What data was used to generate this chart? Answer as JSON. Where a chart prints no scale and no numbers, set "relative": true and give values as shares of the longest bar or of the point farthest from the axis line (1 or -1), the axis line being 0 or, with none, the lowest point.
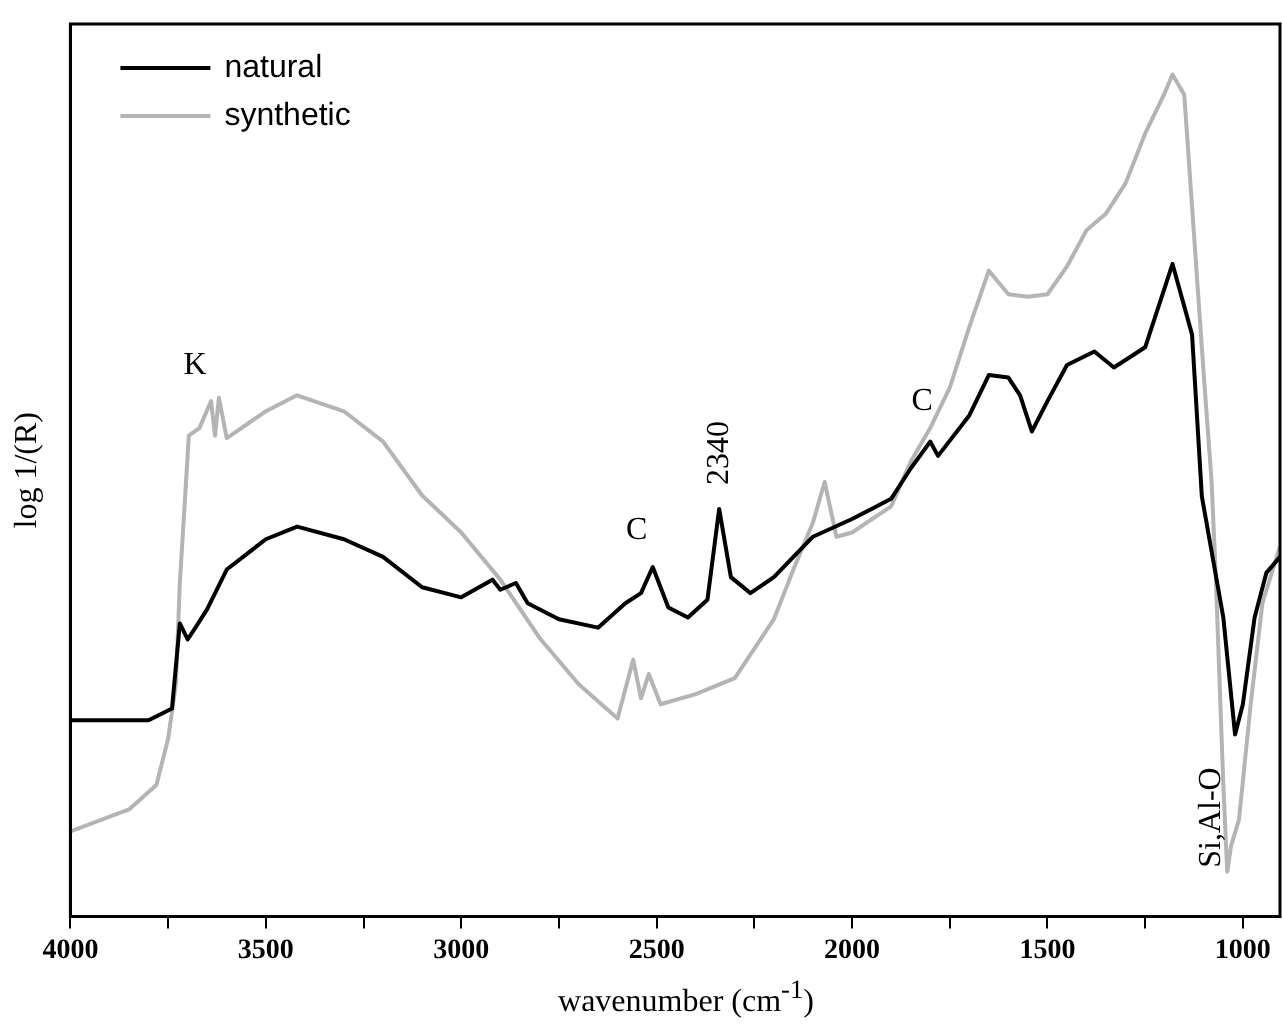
{
  "chart_data": {
    "type": "line",
    "xlabel": "wavenumber (cm$^{-1}$)",
    "ylabel": "log 1/(R)",
    "relative": true,
    "legend": "top left",
    "grid": false,
    "marker": "none",
    "line_style": "solid",
    "xlim": [
      4000,
      905
    ],
    "xticks": [
      4000,
      {
        "value": 3750,
        "label": null
      },
      3500,
      {
        "value": 3250,
        "label": null
      },
      3000,
      {
        "value": 2750,
        "label": null
      },
      2500,
      {
        "value": 2250,
        "label": null
      },
      2000,
      {
        "value": 1750,
        "label": null
      },
      1500,
      {
        "value": 1250,
        "label": null
      },
      1000
    ],
    "series": [
      {
        "name": "natural",
        "color": "#000000",
        "x": [
          4000,
          3800,
          3740,
          3720,
          3700,
          3680,
          3650,
          3600,
          3500,
          3420,
          3300,
          3200,
          3100,
          3000,
          2920,
          2900,
          2860,
          2830,
          2750,
          2650,
          2580,
          2540,
          2510,
          2470,
          2420,
          2370,
          2340,
          2310,
          2260,
          2200,
          2100,
          2000,
          1950,
          1900,
          1850,
          1800,
          1780,
          1700,
          1650,
          1600,
          1570,
          1540,
          1500,
          1450,
          1380,
          1330,
          1250,
          1180,
          1130,
          1105,
          1050,
          1020,
          1000,
          970,
          940,
          905
        ],
        "values": [
          0.233,
          0.233,
          0.247,
          0.348,
          0.329,
          0.343,
          0.365,
          0.412,
          0.448,
          0.463,
          0.448,
          0.427,
          0.391,
          0.379,
          0.4,
          0.388,
          0.396,
          0.372,
          0.353,
          0.343,
          0.372,
          0.384,
          0.415,
          0.367,
          0.355,
          0.376,
          0.484,
          0.403,
          0.384,
          0.403,
          0.451,
          0.472,
          0.484,
          0.496,
          0.532,
          0.564,
          0.547,
          0.595,
          0.643,
          0.64,
          0.619,
          0.576,
          0.612,
          0.655,
          0.671,
          0.652,
          0.676,
          0.775,
          0.691,
          0.499,
          0.355,
          0.216,
          0.252,
          0.355,
          0.408,
          0.427
        ]
      },
      {
        "name": "synthetic",
        "color": "#b4b4b4",
        "x": [
          4000,
          3850,
          3780,
          3750,
          3730,
          3720,
          3697,
          3670,
          3640,
          3630,
          3620,
          3600,
          3500,
          3420,
          3300,
          3200,
          3100,
          3000,
          2900,
          2800,
          2700,
          2600,
          2560,
          2540,
          2520,
          2490,
          2400,
          2300,
          2200,
          2150,
          2100,
          2070,
          2040,
          2000,
          1900,
          1850,
          1800,
          1750,
          1700,
          1650,
          1600,
          1550,
          1500,
          1450,
          1400,
          1350,
          1300,
          1250,
          1200,
          1180,
          1150,
          1100,
          1080,
          1070,
          1050,
          1040,
          1030,
          1010,
          980,
          950,
          905
        ],
        "values": [
          0.101,
          0.127,
          0.156,
          0.211,
          0.276,
          0.396,
          0.571,
          0.58,
          0.612,
          0.571,
          0.616,
          0.568,
          0.6,
          0.619,
          0.6,
          0.564,
          0.5,
          0.456,
          0.4,
          0.331,
          0.276,
          0.235,
          0.305,
          0.259,
          0.288,
          0.252,
          0.264,
          0.283,
          0.353,
          0.412,
          0.468,
          0.516,
          0.451,
          0.456,
          0.487,
          0.54,
          0.58,
          0.628,
          0.7,
          0.767,
          0.739,
          0.736,
          0.739,
          0.772,
          0.815,
          0.835,
          0.871,
          0.93,
          0.978,
          1,
          0.976,
          0.643,
          0.516,
          0.412,
          0.156,
          0.053,
          0.084,
          0.115,
          0.252,
          0.372,
          0.44
        ]
      }
    ],
    "annotations": [
      {
        "text": "K",
        "x": 3640,
        "y": 0.612
      },
      {
        "text": "C",
        "x": 2510,
        "y": 0.415
      },
      {
        "text": "2340",
        "x": 2340,
        "y": 0.484
      },
      {
        "text": "C",
        "x": 1800,
        "y": 0.564
      },
      {
        "text": "Si,Al-O",
        "x": 1040,
        "y": 0.053
      }
    ]
  }
}
